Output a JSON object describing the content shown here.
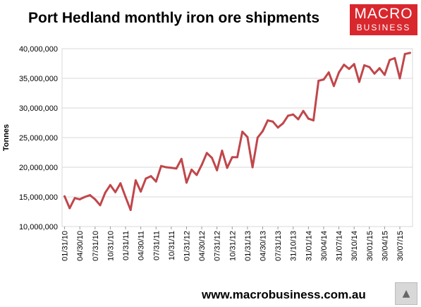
{
  "title": "Port Hedland monthly iron ore shipments",
  "logo": {
    "line1": "MACRO",
    "line2": "BUSINESS",
    "color": "#d9272e"
  },
  "footer": "www.macrobusiness.com.au",
  "mascot_icon": "wolf-icon",
  "chart_data": {
    "type": "line",
    "title": "Port Hedland monthly iron ore shipments",
    "xlabel": "",
    "ylabel": "Tonnes",
    "ylim": [
      10000000,
      40000000
    ],
    "yticks": [
      10000000,
      15000000,
      20000000,
      25000000,
      30000000,
      35000000,
      40000000
    ],
    "ytick_labels": [
      "10,000,000",
      "15,000,000",
      "20,000,000",
      "25,000,000",
      "30,000,000",
      "35,000,000",
      "40,000,000"
    ],
    "xtick_labels": [
      "01/31/10",
      "04/30/10",
      "07/31/10",
      "10/31/10",
      "01/31/11",
      "04/30/11",
      "07/31/11",
      "10/31/11",
      "01/31/12",
      "04/30/12",
      "07/31/12",
      "10/31/12",
      "01/31/13",
      "04/30/13",
      "07/31/13",
      "31/10/13",
      "31/01/14",
      "30/04/14",
      "31/07/14",
      "30/10/14",
      "30/01/15",
      "30/04/15",
      "30/07/15"
    ],
    "grid": true,
    "line_color": "#c0474b",
    "series": [
      {
        "values": [
          15100000,
          13100000,
          14800000,
          14600000,
          15000000,
          15300000,
          14600000,
          13600000,
          15700000,
          17000000,
          15800000,
          17300000,
          15000000,
          12800000,
          17800000,
          15900000,
          18100000,
          18500000,
          17600000,
          20200000,
          20000000,
          19900000,
          19800000,
          21400000,
          17400000,
          19600000,
          18700000,
          20400000,
          22400000,
          21600000,
          19500000,
          22800000,
          19900000,
          21700000,
          21700000,
          26000000,
          25100000,
          20000000,
          25000000,
          26100000,
          27900000,
          27700000,
          26700000,
          27400000,
          28700000,
          28900000,
          28100000,
          29500000,
          28200000,
          27900000,
          34600000,
          34800000,
          36000000,
          33700000,
          36000000,
          37300000,
          36600000,
          37400000,
          34400000,
          37200000,
          36900000,
          35800000,
          36700000,
          35600000,
          38100000,
          38400000,
          35000000,
          39100000,
          39300000
        ]
      }
    ]
  }
}
